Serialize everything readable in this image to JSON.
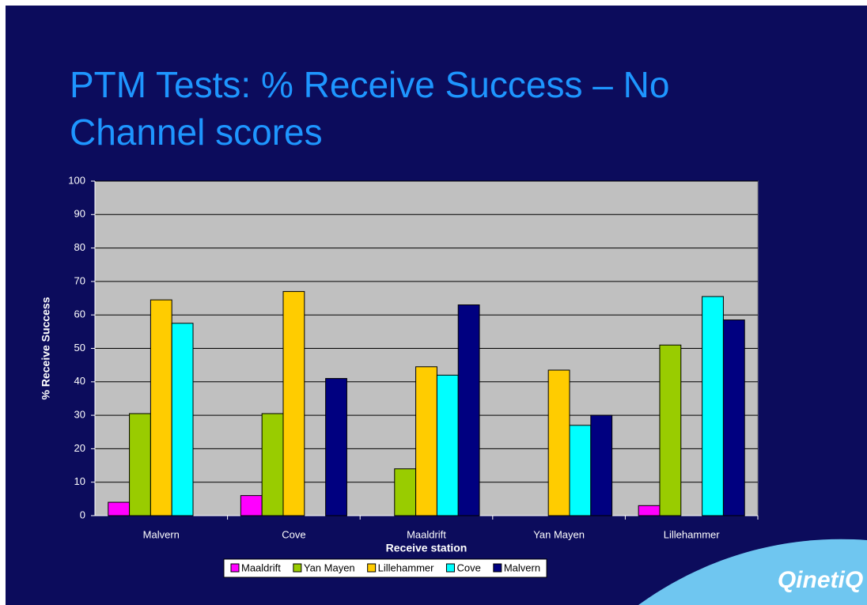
{
  "chart_data": {
    "type": "bar",
    "title": "PTM Tests: % Receive Success – No Channel scores",
    "x_label": "Receive station",
    "y_label": "% Receive Success",
    "categories": [
      "Malvern",
      "Cove",
      "Maaldrift",
      "Yan Mayen",
      "Lillehammer"
    ],
    "series": [
      {
        "name": "Maaldrift",
        "color": "#ff00ff",
        "values": [
          4,
          6,
          null,
          null,
          3
        ]
      },
      {
        "name": "Yan Mayen",
        "color": "#99cc00",
        "values": [
          30.5,
          30.5,
          14,
          null,
          51
        ]
      },
      {
        "name": "Lillehammer",
        "color": "#ffcc00",
        "values": [
          64.5,
          67,
          44.5,
          43.5,
          null
        ]
      },
      {
        "name": "Cove",
        "color": "#00ffff",
        "values": [
          57.5,
          null,
          42,
          27,
          65.5
        ]
      },
      {
        "name": "Malvern",
        "color": "#000080",
        "values": [
          null,
          41,
          63,
          30,
          58.5
        ]
      }
    ],
    "ylim": [
      0,
      100
    ],
    "yticks": [
      0,
      10,
      20,
      30,
      40,
      50,
      60,
      70,
      80,
      90,
      100
    ],
    "grid": true,
    "legend": "bottom"
  },
  "logo": "QinetiQ"
}
